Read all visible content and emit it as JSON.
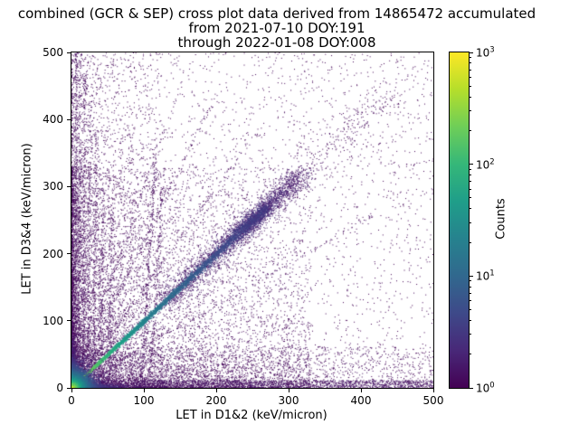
{
  "chart_data": {
    "type": "heatmap",
    "title": "combined (GCR & SEP) cross plot data derived from 14865472 accumulated from 2021-07-10 DOY:191 through 2022-01-08 DOY:008",
    "title_lines": [
      "combined (GCR & SEP) cross plot data derived from 14865472 accumulated",
      "from 2021-07-10 DOY:191",
      "through 2022-01-08 DOY:008"
    ],
    "xlabel": "LET in D1&2 (keV/micron)",
    "ylabel": "LET in D3&4 (keV/micron)",
    "xlim": [
      0,
      500
    ],
    "ylim": [
      0,
      500
    ],
    "xticks": [
      0,
      100,
      200,
      300,
      400,
      500
    ],
    "yticks": [
      0,
      100,
      200,
      300,
      400,
      500
    ],
    "grid": false,
    "accumulated_events": 14865472,
    "date_start": "2021-07-10",
    "doy_start": 191,
    "date_end": "2022-01-08",
    "doy_end": 8,
    "colorbar": {
      "label": "Counts",
      "scale": "log",
      "min": 1,
      "max": 1000,
      "tick_labels": [
        "10^0",
        "10^1",
        "10^2",
        "10^3"
      ],
      "tick_exponents": [
        0,
        1,
        2,
        3
      ],
      "colormap": "viridis",
      "viridis_stops": [
        "#440154",
        "#482878",
        "#3e4989",
        "#31688e",
        "#26828e",
        "#1f9e89",
        "#35b779",
        "#6ece58",
        "#b5de2b",
        "#fde725"
      ]
    },
    "seed": 1337,
    "features": [
      {
        "kind": "uniform",
        "name": "background-sparse",
        "n": 2600,
        "level": 0.0
      },
      {
        "kind": "power",
        "name": "lowleft-dense",
        "n": 10000,
        "xs": 330,
        "xp": 2.6,
        "ys": 330,
        "yp": 2.6,
        "level": 0.02
      },
      {
        "kind": "power",
        "name": "left-column-spread",
        "n": 2600,
        "xs": 125,
        "xp": 2.0,
        "ys": 500,
        "yp": 1.25,
        "level": 0.01
      },
      {
        "kind": "hband",
        "name": "bottom-spread",
        "n": 2200,
        "ymin": 0,
        "ymax": 62,
        "xmax": 500,
        "xp": 2.0,
        "level": 0.02
      },
      {
        "kind": "hband",
        "name": "bottom-band",
        "n": 1800,
        "ymin": 0,
        "ymax": 12,
        "xmax": 500,
        "xp": 1.0,
        "level": 0.05
      },
      {
        "kind": "vstreaks",
        "name": "vertical-streaks",
        "level": 0.03,
        "streaks": [
          {
            "x0": 4,
            "ymax": 500,
            "n": 350,
            "tilt": 0.004
          },
          {
            "x0": 9,
            "ymax": 500,
            "n": 300,
            "tilt": 0.005
          },
          {
            "x0": 15,
            "ymax": 470,
            "n": 260,
            "tilt": 0.006
          },
          {
            "x0": 22,
            "ymax": 430,
            "n": 220,
            "tilt": 0.008
          },
          {
            "x0": 30,
            "ymax": 390,
            "n": 180,
            "tilt": 0.01
          },
          {
            "x0": 40,
            "ymax": 300,
            "n": 140,
            "tilt": 0.01
          },
          {
            "x0": 52,
            "ymax": 260,
            "n": 120,
            "tilt": 0.012
          },
          {
            "x0": 95,
            "ymax": 345,
            "n": 240,
            "tilt": 0.06
          },
          {
            "x0": 107,
            "ymax": 330,
            "n": 170,
            "tilt": 0.06
          }
        ]
      },
      {
        "kind": "rays",
        "name": "origin-fan-rays",
        "level": 0.03,
        "rays": [
          {
            "slope": 1.5,
            "ymax": 380,
            "n": 200
          },
          {
            "slope": 2.2,
            "ymax": 420,
            "n": 180
          },
          {
            "slope": 3.0,
            "ymax": 430,
            "n": 150
          },
          {
            "slope": 0.62,
            "xmax": 420,
            "n": 160
          }
        ]
      },
      {
        "kind": "dband",
        "name": "diagonal-fuzzy-band",
        "n": 2400,
        "start": 130,
        "end": 320,
        "jitter": 9,
        "level": 0.07
      },
      {
        "kind": "dband",
        "name": "diagonal-tail",
        "n": 260,
        "start": 300,
        "end": 445,
        "jitter": 13,
        "level": 0.02
      },
      {
        "kind": "blob45",
        "name": "diagonal-blob",
        "n": 1000,
        "cx": 251,
        "cy": 251,
        "s_along": 30,
        "s_across": 6,
        "level": 0.13
      },
      {
        "kind": "diagonal",
        "name": "main-diagonal",
        "n": 6000,
        "length": 270,
        "pow": 1.7,
        "jitter": 1.0,
        "level_base": 0.08,
        "level_amp": 0.85,
        "level_decay": 120
      },
      {
        "kind": "smear",
        "name": "x-axis-smear",
        "n": 1100,
        "axis": "x",
        "scale": 26,
        "width": 2.5,
        "level_max": 0.5,
        "level_scale": 45
      },
      {
        "kind": "smear",
        "name": "y-axis-smear",
        "n": 900,
        "axis": "y",
        "scale": 22,
        "width": 2.2,
        "level_max": 0.45,
        "level_scale": 40
      },
      {
        "kind": "exp2d",
        "name": "origin-hotspot",
        "n": 9000,
        "scale": 8,
        "level_scale": 22,
        "level_max": 1.0
      }
    ]
  }
}
